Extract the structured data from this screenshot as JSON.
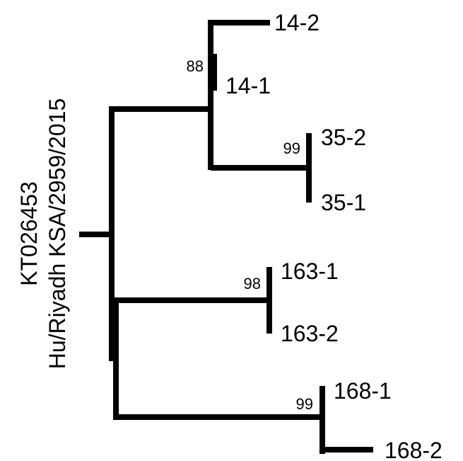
{
  "reference": {
    "accession": "KT026453",
    "strain": "Hu/Riyadh KSA/2959/2015"
  },
  "leaves": [
    "14-2",
    "14-1",
    "35-2",
    "35-1",
    "163-1",
    "163-2",
    "168-1",
    "168-2"
  ],
  "bootstrap": [
    "88",
    "99",
    "98",
    "99"
  ]
}
